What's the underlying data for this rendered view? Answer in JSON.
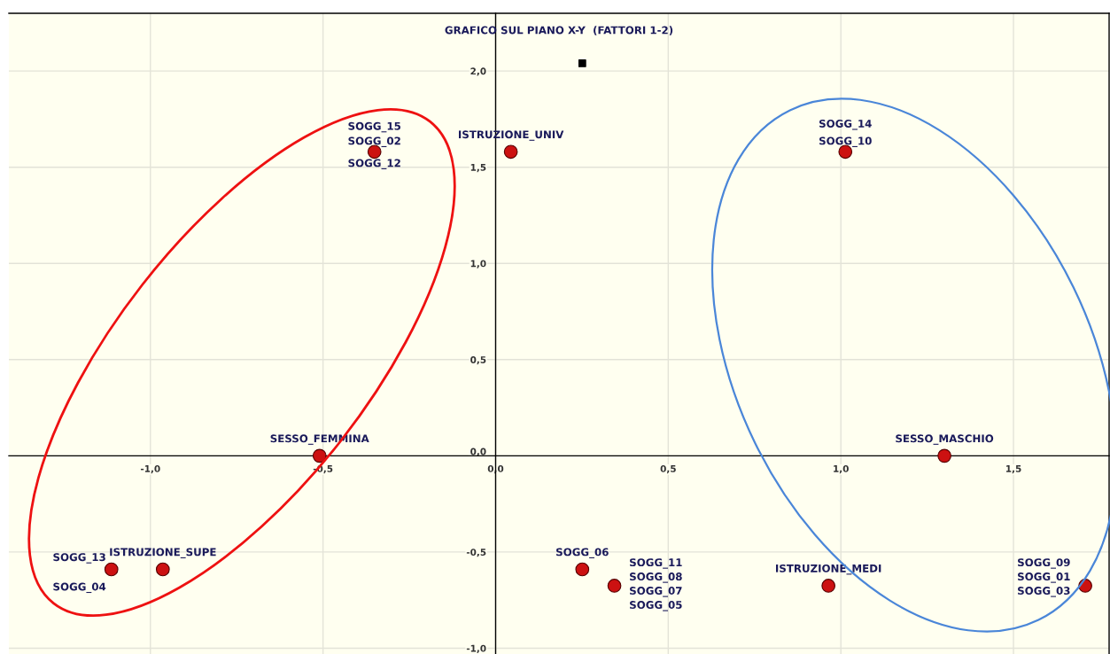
{
  "chart_data": {
    "type": "scatter",
    "title": "GRAFICO SUL PIANO X-Y  (FATTORI 1-2)",
    "series": [
      {
        "color": "#cc1111",
        "marker": "circle",
        "x": [
          -0.351,
          0.044,
          1.013,
          -0.51,
          1.3,
          -1.113,
          -0.964,
          0.251,
          0.344,
          0.964,
          1.708
        ],
        "values": [
          1.58,
          1.58,
          1.58,
          0.0,
          0.0,
          -0.59,
          -0.59,
          -0.59,
          -0.675,
          -0.675,
          -0.675
        ]
      },
      {
        "color": "#000000",
        "marker": "square",
        "x": [
          0.251
        ],
        "values": [
          2.04
        ]
      }
    ],
    "annotations": [
      {
        "text": "SOGG_15",
        "x": -0.351,
        "y": 1.58
      },
      {
        "text": "SOGG_02",
        "x": -0.351,
        "y": 1.58
      },
      {
        "text": "SOGG_12",
        "x": -0.351,
        "y": 1.58
      },
      {
        "text": "ISTRUZIONE_UNIV",
        "x": 0.044,
        "y": 1.58
      },
      {
        "text": "SOGG_14",
        "x": 1.013,
        "y": 1.58
      },
      {
        "text": "SOGG_10",
        "x": 1.013,
        "y": 1.58
      },
      {
        "text": "SESSO_FEMMINA",
        "x": -0.51,
        "y": 0.0
      },
      {
        "text": "SESSO_MASCHIO",
        "x": 1.3,
        "y": 0.0
      },
      {
        "text": "SOGG_13",
        "x": -1.113,
        "y": -0.59
      },
      {
        "text": "SOGG_04",
        "x": -1.113,
        "y": -0.59
      },
      {
        "text": "ISTRUZIONE_SUPE",
        "x": -0.964,
        "y": -0.59
      },
      {
        "text": "SOGG_06",
        "x": 0.251,
        "y": -0.59
      },
      {
        "text": "SOGG_11",
        "x": 0.344,
        "y": -0.675
      },
      {
        "text": "SOGG_08",
        "x": 0.344,
        "y": -0.675
      },
      {
        "text": "SOGG_07",
        "x": 0.344,
        "y": -0.675
      },
      {
        "text": "SOGG_05",
        "x": 0.344,
        "y": -0.675
      },
      {
        "text": "ISTRUZIONE_MEDI",
        "x": 0.964,
        "y": -0.675
      },
      {
        "text": "SOGG_09",
        "x": 1.708,
        "y": -0.675
      },
      {
        "text": "SOGG_01",
        "x": 1.708,
        "y": -0.675
      },
      {
        "text": "SOGG_03",
        "x": 1.708,
        "y": -0.675
      }
    ],
    "xlim": [
      -1.41,
      1.777
    ],
    "ylim": [
      -1.03,
      2.3
    ],
    "xticks": [
      {
        "value": -1.0,
        "label": "-1,0"
      },
      {
        "value": -0.5,
        "label": "-0,5"
      },
      {
        "value": 0.0,
        "label": "0,0"
      },
      {
        "value": 0.5,
        "label": "0,5"
      },
      {
        "value": 1.0,
        "label": "1,0"
      },
      {
        "value": 1.5,
        "label": "1,5"
      }
    ],
    "yticks": [
      {
        "value": -1.0,
        "label": "-1,0"
      },
      {
        "value": -0.5,
        "label": "-0,5"
      },
      {
        "value": 0.0,
        "label": "0,0"
      },
      {
        "value": 0.5,
        "label": "0,5"
      },
      {
        "value": 1.0,
        "label": "1,0"
      },
      {
        "value": 1.5,
        "label": "1,5"
      },
      {
        "value": 2.0,
        "label": "2,0"
      }
    ],
    "grid": true
  }
}
